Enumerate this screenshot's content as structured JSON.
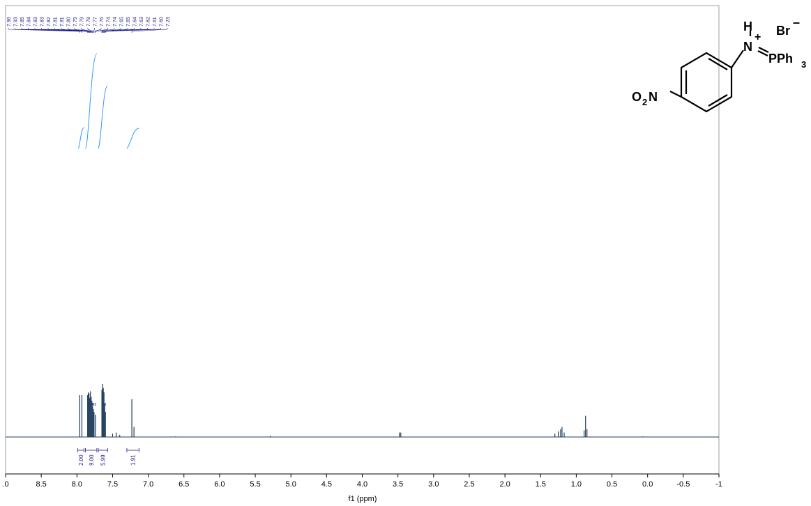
{
  "chart_data": {
    "type": "line",
    "xlabel": "f1 (ppm)",
    "xlim": [
      9.0,
      -1.0
    ],
    "x_ticks": [
      ".0",
      "8.5",
      "8.0",
      "7.5",
      "7.0",
      "6.5",
      "6.0",
      "5.5",
      "5.0",
      "4.5",
      "4.0",
      "3.5",
      "3.0",
      "2.5",
      "2.0",
      "1.5",
      "1.0",
      "0.5",
      "0.0",
      "-0.5",
      "-1"
    ],
    "peak_labels": [
      "7.96",
      "7.93",
      "7.85",
      "7.84",
      "7.83",
      "7.83",
      "7.82",
      "7.81",
      "7.81",
      "7.80",
      "7.79",
      "7.79",
      "7.78",
      "7.77",
      "7.76",
      "7.74",
      "7.74",
      "7.65",
      "7.65",
      "7.64",
      "7.63",
      "7.62",
      "7.61",
      "7.60",
      "7.23"
    ],
    "integrations": [
      {
        "value": "2.00",
        "from": 7.99,
        "to": 7.9
      },
      {
        "value": "9.00",
        "from": 7.88,
        "to": 7.72
      },
      {
        "value": "5.99",
        "from": 7.7,
        "to": 7.57
      },
      {
        "value": "1.91",
        "from": 7.3,
        "to": 7.13
      }
    ],
    "peaks": [
      {
        "ppm": 7.96,
        "h": 0.75
      },
      {
        "ppm": 7.93,
        "h": 0.75
      },
      {
        "ppm": 7.85,
        "h": 0.75
      },
      {
        "ppm": 7.84,
        "h": 0.8
      },
      {
        "ppm": 7.83,
        "h": 0.78
      },
      {
        "ppm": 7.82,
        "h": 0.7
      },
      {
        "ppm": 7.81,
        "h": 0.82
      },
      {
        "ppm": 7.8,
        "h": 0.72
      },
      {
        "ppm": 7.79,
        "h": 0.65
      },
      {
        "ppm": 7.78,
        "h": 0.55
      },
      {
        "ppm": 7.77,
        "h": 0.5
      },
      {
        "ppm": 7.76,
        "h": 0.45
      },
      {
        "ppm": 7.74,
        "h": 0.4
      },
      {
        "ppm": 7.65,
        "h": 0.85
      },
      {
        "ppm": 7.64,
        "h": 0.95
      },
      {
        "ppm": 7.63,
        "h": 0.88
      },
      {
        "ppm": 7.62,
        "h": 0.8
      },
      {
        "ppm": 7.61,
        "h": 0.6
      },
      {
        "ppm": 7.6,
        "h": 0.45
      },
      {
        "ppm": 7.5,
        "h": 0.06
      },
      {
        "ppm": 7.45,
        "h": 0.08
      },
      {
        "ppm": 7.4,
        "h": 0.04
      },
      {
        "ppm": 7.23,
        "h": 0.68
      },
      {
        "ppm": 7.2,
        "h": 0.18
      },
      {
        "ppm": 6.62,
        "h": 0.01
      },
      {
        "ppm": 5.29,
        "h": 0.02
      },
      {
        "ppm": 3.48,
        "h": 0.08
      },
      {
        "ppm": 3.46,
        "h": 0.08
      },
      {
        "ppm": 1.3,
        "h": 0.06
      },
      {
        "ppm": 1.25,
        "h": 0.1
      },
      {
        "ppm": 1.22,
        "h": 0.14
      },
      {
        "ppm": 1.2,
        "h": 0.18
      },
      {
        "ppm": 1.17,
        "h": 0.08
      },
      {
        "ppm": 0.89,
        "h": 0.12
      },
      {
        "ppm": 0.87,
        "h": 0.38
      },
      {
        "ppm": 0.85,
        "h": 0.14
      },
      {
        "ppm": 0.07,
        "h": 0.01
      }
    ],
    "line_color": "#1f3d5c",
    "annotation_color": "#1a1a8c",
    "integral_color": "#3399ff"
  },
  "structure": {
    "labels": {
      "H": "H",
      "N_plus": "N",
      "plus": "+",
      "Br": "Br",
      "minus": "–",
      "P": "PPh",
      "P_sub": "3",
      "O2N": "O",
      "O2N_sub": "2",
      "O2N_N": "N"
    }
  }
}
